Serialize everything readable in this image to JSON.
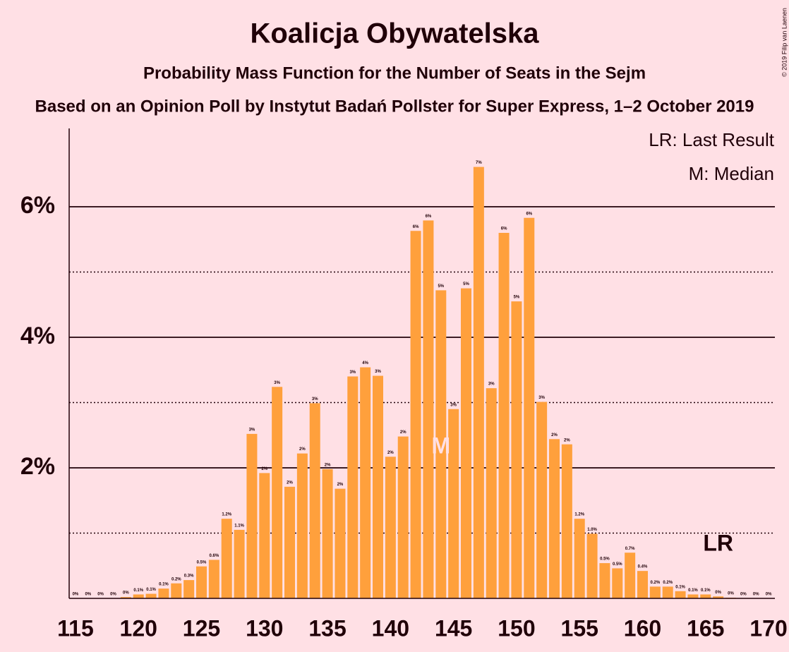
{
  "chart_data": {
    "type": "bar",
    "title": "Koalicja Obywatelska",
    "subtitle": "Probability Mass Function for the Number of Seats in the Sejm",
    "subtitle2": "Based on an Opinion Poll by Instytut Badań Pollster for Super Express, 1–2 October 2019",
    "copyright": "© 2019 Filip van Laenen",
    "legend_notes": [
      "LR: Last Result",
      "M: Median"
    ],
    "median": {
      "x": 144,
      "label": "M"
    },
    "last_result": {
      "x": 166,
      "label": "LR"
    },
    "color": "#ffa03c",
    "x": [
      115,
      116,
      117,
      118,
      119,
      120,
      121,
      122,
      123,
      124,
      125,
      126,
      127,
      128,
      129,
      130,
      131,
      132,
      133,
      134,
      135,
      136,
      137,
      138,
      139,
      140,
      141,
      142,
      143,
      144,
      145,
      146,
      147,
      148,
      149,
      150,
      151,
      152,
      153,
      154,
      155,
      156,
      157,
      158,
      159,
      160,
      161,
      162,
      163,
      164,
      165,
      166,
      167,
      168,
      169,
      170
    ],
    "values": [
      0,
      0,
      0,
      0,
      0.02,
      0.06,
      0.07,
      0.15,
      0.23,
      0.28,
      0.49,
      0.59,
      1.22,
      1.05,
      2.52,
      1.92,
      3.24,
      1.71,
      2.22,
      2.99,
      1.98,
      1.68,
      3.4,
      3.54,
      3.41,
      2.17,
      2.48,
      5.63,
      5.79,
      4.72,
      2.9,
      4.75,
      6.61,
      3.22,
      5.6,
      4.55,
      5.83,
      3.01,
      2.44,
      2.36,
      1.22,
      0.99,
      0.54,
      0.46,
      0.7,
      0.42,
      0.18,
      0.18,
      0.11,
      0.06,
      0.06,
      0.03,
      0.01,
      0,
      0,
      0
    ],
    "value_labels": [
      "0%",
      "0%",
      "0%",
      "0%",
      "0%",
      "0.1%",
      "0.1%",
      "0.1%",
      "0.2%",
      "0.3%",
      "0.5%",
      "0.6%",
      "1.2%",
      "1.1%",
      "3%",
      "2%",
      "3%",
      "2%",
      "2%",
      "3%",
      "2%",
      "2%",
      "3%",
      "4%",
      "3%",
      "2%",
      "2%",
      "6%",
      "6%",
      "5%",
      "3%",
      "5%",
      "7%",
      "3%",
      "6%",
      "5%",
      "6%",
      "3%",
      "2%",
      "2%",
      "1.2%",
      "1.0%",
      "0.5%",
      "0.5%",
      "0.7%",
      "0.4%",
      "0.2%",
      "0.2%",
      "0.1%",
      "0.1%",
      "0.1%",
      "0%",
      "0%",
      "0%",
      "0%",
      "0%"
    ],
    "xlim": [
      114.5,
      170.5
    ],
    "xticks": [
      115,
      120,
      125,
      130,
      135,
      140,
      145,
      150,
      155,
      160,
      165,
      170
    ],
    "ylim": [
      0,
      7.2
    ],
    "yticks": [
      {
        "value": 2,
        "label": "2%"
      },
      {
        "value": 4,
        "label": "4%"
      },
      {
        "value": 6,
        "label": "6%"
      }
    ],
    "yminor": [
      1,
      3,
      5
    ],
    "grid": true
  }
}
